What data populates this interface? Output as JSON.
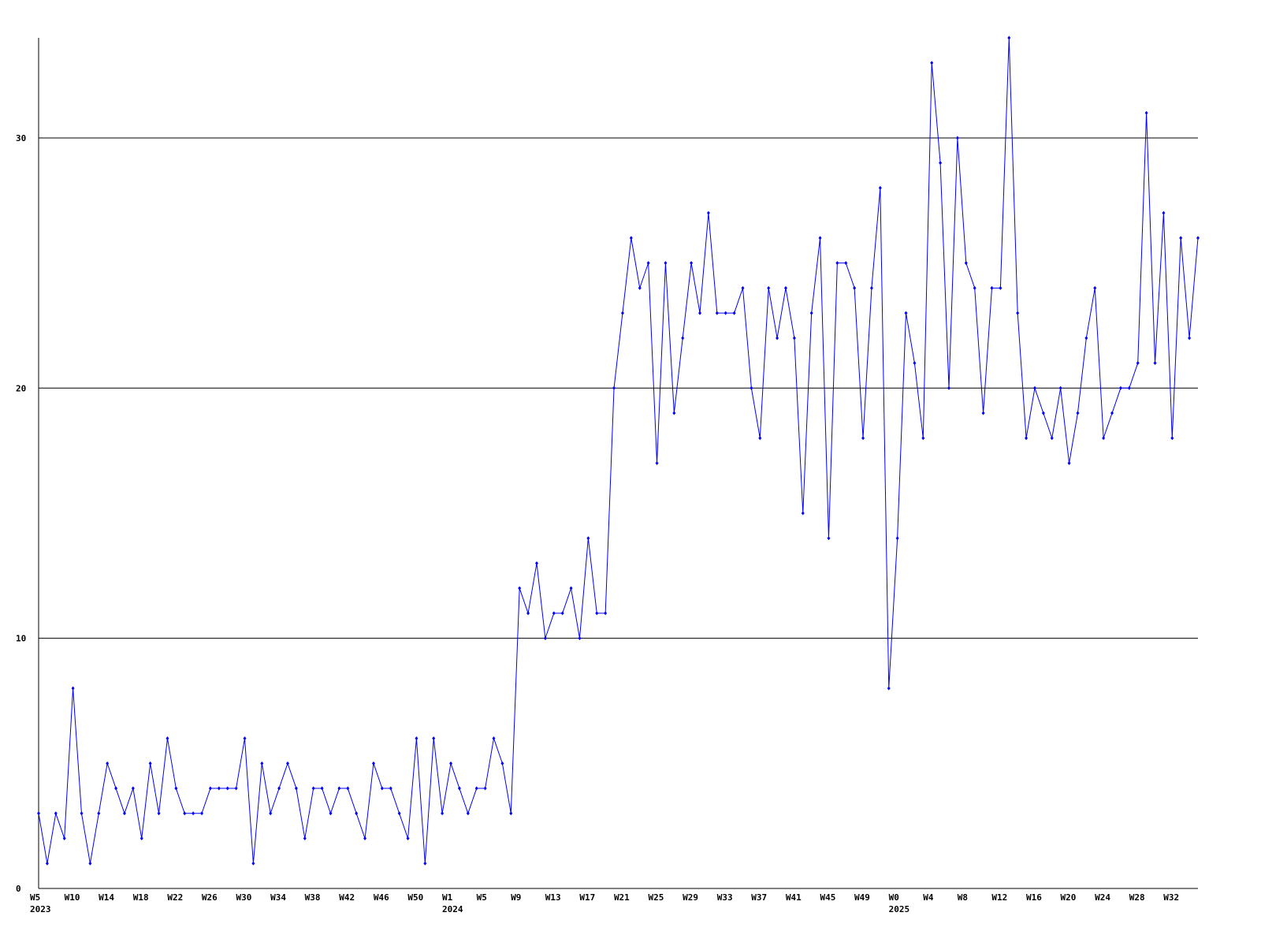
{
  "chart_data": {
    "type": "line",
    "categories": [
      "W5",
      null,
      null,
      null,
      "W10",
      null,
      null,
      null,
      "W14",
      null,
      null,
      null,
      "W18",
      null,
      null,
      null,
      "W22",
      null,
      null,
      null,
      "W26",
      null,
      null,
      null,
      "W30",
      null,
      null,
      null,
      "W34",
      null,
      null,
      null,
      "W38",
      null,
      null,
      null,
      "W42",
      null,
      null,
      null,
      "W46",
      null,
      null,
      null,
      "W50",
      null,
      null,
      null,
      "W1",
      null,
      null,
      null,
      "W5",
      null,
      null,
      null,
      "W9",
      null,
      null,
      null,
      "W13",
      null,
      null,
      null,
      "W17",
      null,
      null,
      null,
      "W21",
      null,
      null,
      null,
      "W25",
      null,
      null,
      null,
      "W29",
      null,
      null,
      null,
      "W33",
      null,
      null,
      null,
      "W37",
      null,
      null,
      null,
      "W41",
      null,
      null,
      null,
      "W45",
      null,
      null,
      null,
      "W49",
      null,
      null,
      null,
      "W0",
      null,
      null,
      null,
      "W4",
      null,
      null,
      null,
      "W8",
      null,
      null,
      null,
      "W12",
      null,
      null,
      null,
      "W16",
      null,
      null,
      null,
      "W20",
      null,
      null,
      null,
      "W24",
      null,
      null,
      null,
      "W28",
      null,
      null,
      null,
      "W32",
      null,
      null,
      null
    ],
    "category_years": [
      "2023",
      null,
      null,
      null,
      null,
      null,
      null,
      null,
      null,
      null,
      null,
      null,
      null,
      null,
      null,
      null,
      null,
      null,
      null,
      null,
      null,
      null,
      null,
      null,
      null,
      null,
      null,
      null,
      null,
      null,
      null,
      null,
      null,
      null,
      null,
      null,
      null,
      null,
      null,
      null,
      null,
      null,
      null,
      null,
      null,
      null,
      null,
      null,
      "2024",
      null,
      null,
      null,
      null,
      null,
      null,
      null,
      null,
      null,
      null,
      null,
      null,
      null,
      null,
      null,
      null,
      null,
      null,
      null,
      null,
      null,
      null,
      null,
      null,
      null,
      null,
      null,
      null,
      null,
      null,
      null,
      null,
      null,
      null,
      null,
      null,
      null,
      null,
      null,
      null,
      null,
      null,
      null,
      null,
      null,
      null,
      null,
      null,
      null,
      null,
      null,
      "2025",
      null,
      null,
      null,
      null,
      null,
      null,
      null,
      null,
      null,
      null,
      null,
      null,
      null,
      null,
      null,
      null,
      null,
      null,
      null,
      null,
      null,
      null,
      null,
      null,
      null,
      null,
      null,
      null,
      null,
      null,
      null,
      null,
      null,
      null,
      null
    ],
    "series": [
      {
        "color": "#0000ff",
        "values": [
          3,
          1,
          3,
          2,
          8,
          3,
          1,
          3,
          5,
          4,
          3,
          4,
          2,
          5,
          3,
          6,
          4,
          3,
          3,
          3,
          4,
          4,
          4,
          4,
          6,
          1,
          5,
          3,
          4,
          5,
          4,
          2,
          4,
          4,
          3,
          4,
          4,
          3,
          2,
          5,
          4,
          4,
          3,
          2,
          6,
          1,
          6,
          3,
          5,
          4,
          3,
          4,
          4,
          6,
          5,
          3,
          12,
          11,
          13,
          10,
          11,
          11,
          12,
          10,
          14,
          11,
          11,
          20,
          23,
          26,
          24,
          25,
          17,
          25,
          19,
          22,
          25,
          23,
          27,
          23,
          23,
          23,
          24,
          20,
          18,
          24,
          22,
          24,
          22,
          15,
          23,
          26,
          14,
          25,
          25,
          24,
          18,
          24,
          28,
          8,
          14,
          23,
          21,
          18,
          33,
          29,
          20,
          30,
          25,
          24,
          19,
          24,
          24,
          34,
          23,
          18,
          20,
          19,
          18,
          20,
          17,
          19,
          22,
          24,
          18,
          19,
          20,
          20,
          21,
          31,
          21,
          27,
          18,
          26,
          22,
          26
        ]
      }
    ],
    "ylim": [
      0,
      34
    ],
    "yticks": [
      0,
      10,
      20,
      30
    ],
    "grid": true
  }
}
